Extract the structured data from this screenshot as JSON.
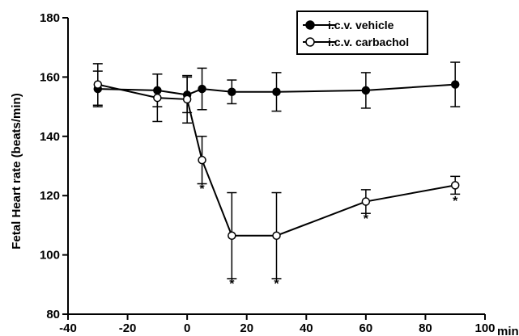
{
  "chart_data": {
    "type": "line",
    "title": "",
    "xlabel": "min",
    "ylabel": "Fetal Heart rate (beats/min)",
    "xlim": [
      -40,
      100
    ],
    "ylim": [
      80,
      180
    ],
    "x_ticks": [
      -40,
      -20,
      0,
      20,
      40,
      60,
      80,
      100
    ],
    "y_ticks": [
      80,
      100,
      120,
      140,
      160,
      180
    ],
    "grid": false,
    "legend_position": "top-right",
    "series": [
      {
        "name": "i.c.v. vehicle",
        "marker": "filled-circle",
        "color": "#000000",
        "points": [
          {
            "x": -30,
            "y": 156,
            "err": 6
          },
          {
            "x": -10,
            "y": 155.5,
            "err": 5.5
          },
          {
            "x": 0,
            "y": 154,
            "err": 6
          },
          {
            "x": 5,
            "y": 156,
            "err": 7
          },
          {
            "x": 15,
            "y": 155,
            "err": 4
          },
          {
            "x": 30,
            "y": 155,
            "err": 6.5
          },
          {
            "x": 60,
            "y": 155.5,
            "err": 6
          },
          {
            "x": 90,
            "y": 157.5,
            "err": 7.5
          }
        ]
      },
      {
        "name": "i.c.v. carbachol",
        "marker": "open-circle",
        "color": "#000000",
        "points": [
          {
            "x": -30,
            "y": 157.5,
            "err": 7
          },
          {
            "x": -10,
            "y": 153,
            "err": 8
          },
          {
            "x": 0,
            "y": 152.5,
            "err": 8
          },
          {
            "x": 5,
            "y": 132,
            "err": 8
          },
          {
            "x": 15,
            "y": 106.5,
            "err": 14.5
          },
          {
            "x": 30,
            "y": 106.5,
            "err": 14.5
          },
          {
            "x": 60,
            "y": 118,
            "err": 4
          },
          {
            "x": 90,
            "y": 123.5,
            "err": 3
          }
        ]
      }
    ],
    "annotations": [
      {
        "text": "*",
        "x": 5,
        "y": 123
      },
      {
        "text": "*",
        "x": 15,
        "y": 91
      },
      {
        "text": "*",
        "x": 30,
        "y": 91
      },
      {
        "text": "*",
        "x": 60,
        "y": 113
      },
      {
        "text": "*",
        "x": 90,
        "y": 119
      }
    ]
  }
}
